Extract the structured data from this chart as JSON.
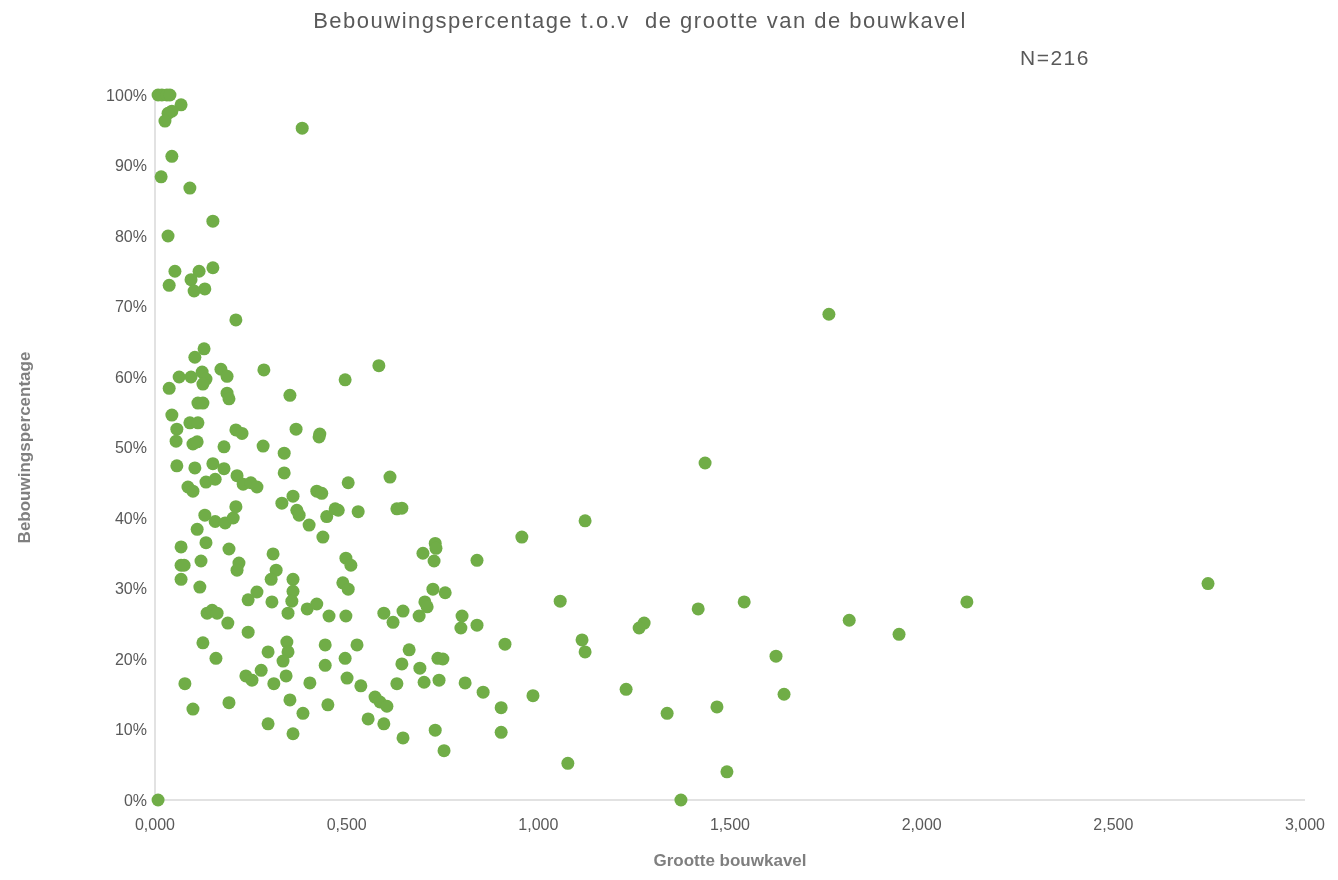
{
  "chart_data": {
    "type": "scatter",
    "title": "Bebouwingspercentage t.o.v  de grootte van de bouwkavel",
    "annotations": [
      "N=216"
    ],
    "xlabel": "Grootte bouwkavel",
    "ylabel": "Bebouwingspercentage",
    "marker": "circle",
    "grid": false,
    "xlim": [
      0,
      3
    ],
    "xticks": [
      {
        "value": 0,
        "label": "0,000"
      },
      {
        "value": 0.5,
        "label": "0,500"
      },
      {
        "value": 1,
        "label": "1,000"
      },
      {
        "value": 1.5,
        "label": "1,500"
      },
      {
        "value": 2,
        "label": "2,000"
      },
      {
        "value": 2.5,
        "label": "2,500"
      },
      {
        "value": 3,
        "label": "3,000"
      }
    ],
    "ylim": [
      0,
      100
    ],
    "yticks": [
      {
        "value": 0,
        "label": "0%"
      },
      {
        "value": 10,
        "label": "10%"
      },
      {
        "value": 20,
        "label": "20%"
      },
      {
        "value": 30,
        "label": "30%"
      },
      {
        "value": 40,
        "label": "40%"
      },
      {
        "value": 50,
        "label": "50%"
      },
      {
        "value": 60,
        "label": "60%"
      },
      {
        "value": 70,
        "label": "70%"
      },
      {
        "value": 80,
        "label": "80%"
      },
      {
        "value": 90,
        "label": "90%"
      },
      {
        "value": 100,
        "label": "100%"
      }
    ],
    "series": [
      {
        "color": "#70ad47",
        "x": [
          0.008,
          0.018,
          0.031,
          0.039,
          0.068,
          0.044,
          0.034,
          0.026,
          0.384,
          0.044,
          0.016,
          0.091,
          0.151,
          0.034,
          0.052,
          0.115,
          0.151,
          0.094,
          0.037,
          0.13,
          0.102,
          0.211,
          0.128,
          0.104,
          0.584,
          0.284,
          0.172,
          0.188,
          0.123,
          0.133,
          0.125,
          0.094,
          0.063,
          0.037,
          0.496,
          0.352,
          0.112,
          0.125,
          0.188,
          0.193,
          0.044,
          0.057,
          0.091,
          0.112,
          0.211,
          0.227,
          0.368,
          0.43,
          0.428,
          0.055,
          0.099,
          0.11,
          0.18,
          0.282,
          0.337,
          0.057,
          0.104,
          0.151,
          0.18,
          0.337,
          0.214,
          0.133,
          0.157,
          0.23,
          0.25,
          0.266,
          0.086,
          0.099,
          0.504,
          0.613,
          0.36,
          0.331,
          0.422,
          0.435,
          0.37,
          0.376,
          0.448,
          0.47,
          0.478,
          0.53,
          0.402,
          0.438,
          0.13,
          0.157,
          0.183,
          0.204,
          0.211,
          0.11,
          0.068,
          0.133,
          0.193,
          0.12,
          0.068,
          0.076,
          0.068,
          0.117,
          0.219,
          0.214,
          0.308,
          0.316,
          0.303,
          0.36,
          0.36,
          0.357,
          0.266,
          0.243,
          0.305,
          0.347,
          0.397,
          0.422,
          0.454,
          0.498,
          0.511,
          0.49,
          0.504,
          0.498,
          0.597,
          0.621,
          0.136,
          0.149,
          0.162,
          0.19,
          0.243,
          0.125,
          0.159,
          0.295,
          0.344,
          0.347,
          0.334,
          0.342,
          0.277,
          0.237,
          0.253,
          0.31,
          0.404,
          0.444,
          0.444,
          0.496,
          0.527,
          0.501,
          0.537,
          0.574,
          0.587,
          0.605,
          0.556,
          0.597,
          0.078,
          0.099,
          0.193,
          0.352,
          0.386,
          0.451,
          0.295,
          0.36,
          0.008,
          0.631,
          0.644,
          1.122,
          0.957,
          0.699,
          0.731,
          0.733,
          0.728,
          0.84,
          0.725,
          0.757,
          0.704,
          0.71,
          0.647,
          0.689,
          1.057,
          0.801,
          0.798,
          0.84,
          1.276,
          1.263,
          1.114,
          1.122,
          0.913,
          0.663,
          0.644,
          0.691,
          0.738,
          0.751,
          0.631,
          0.702,
          0.741,
          0.809,
          0.856,
          0.986,
          1.229,
          0.903,
          1.336,
          0.647,
          0.731,
          0.754,
          0.903,
          1.077,
          1.372,
          1.435,
          1.417,
          1.537,
          1.811,
          1.941,
          2.118,
          1.62,
          1.641,
          1.466,
          1.492,
          1.758,
          2.747
        ],
        "values": [
          100,
          100,
          100,
          100,
          98.6,
          97.7,
          97.4,
          96.3,
          95.3,
          91.3,
          88.4,
          86.8,
          82.1,
          80,
          75,
          75,
          75.5,
          73.8,
          73,
          72.5,
          72.2,
          68.1,
          64,
          62.8,
          61.6,
          61,
          61.1,
          60.1,
          60.7,
          59.7,
          59,
          60,
          60,
          58.4,
          59.6,
          57.4,
          56.3,
          56.3,
          57.7,
          56.9,
          54.6,
          52.6,
          53.5,
          53.5,
          52.5,
          52,
          52.6,
          51.9,
          51.5,
          50.9,
          50.5,
          50.8,
          50.1,
          50.2,
          49.2,
          47.4,
          47.1,
          47.7,
          47,
          46.4,
          46,
          45.1,
          45.5,
          44.8,
          45,
          44.4,
          44.4,
          43.8,
          45,
          45.8,
          43.1,
          42.1,
          43.8,
          43.5,
          41.1,
          40.4,
          40.2,
          41.3,
          41.1,
          40.9,
          39,
          37.3,
          40.4,
          39.5,
          39.3,
          40,
          41.6,
          38.4,
          35.9,
          36.5,
          35.6,
          33.9,
          33.3,
          33.3,
          31.3,
          30.2,
          33.6,
          32.6,
          34.9,
          32.6,
          31.3,
          31.3,
          29.6,
          28.2,
          29.5,
          28.4,
          28.1,
          26.5,
          27.1,
          27.8,
          26.1,
          34.3,
          33.3,
          30.8,
          29.9,
          26.1,
          26.5,
          25.2,
          26.5,
          26.9,
          26.5,
          25.1,
          23.8,
          22.3,
          20.1,
          21,
          22.4,
          21,
          19.7,
          17.6,
          18.4,
          17.6,
          17,
          16.5,
          16.6,
          22,
          19.1,
          20.1,
          22,
          17.3,
          16.2,
          14.6,
          13.9,
          13.3,
          11.5,
          10.8,
          16.5,
          12.9,
          13.8,
          14.2,
          12.3,
          13.5,
          10.8,
          9.4,
          0,
          41.3,
          41.4,
          39.6,
          37.3,
          35,
          36.4,
          35.7,
          33.9,
          34,
          29.9,
          29.4,
          28.1,
          27.4,
          26.8,
          26.1,
          28.2,
          26.1,
          24.4,
          24.8,
          25.1,
          24.4,
          22.7,
          21,
          22.1,
          21.3,
          19.3,
          18.7,
          20.1,
          20,
          16.5,
          16.7,
          17,
          16.6,
          15.3,
          14.8,
          15.7,
          13.1,
          12.3,
          8.8,
          9.9,
          7,
          9.6,
          5.2,
          0,
          47.8,
          27.1,
          28.1,
          25.5,
          23.5,
          28.1,
          20.4,
          15,
          13.2,
          4,
          68.9,
          30.7
        ]
      }
    ]
  }
}
